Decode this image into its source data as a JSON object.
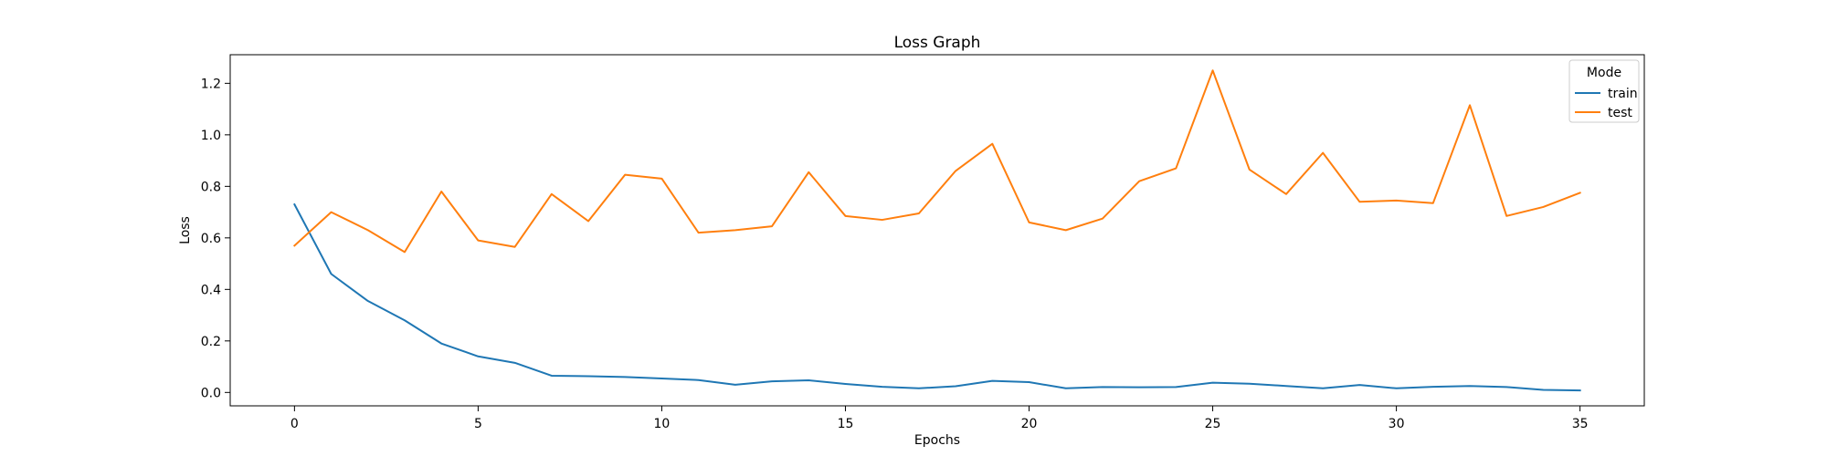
{
  "chart_data": {
    "type": "line",
    "title": "Loss Graph",
    "xlabel": "Epochs",
    "ylabel": "Loss",
    "x": [
      0,
      1,
      2,
      3,
      4,
      5,
      6,
      7,
      8,
      9,
      10,
      11,
      12,
      13,
      14,
      15,
      16,
      17,
      18,
      19,
      20,
      21,
      22,
      23,
      24,
      25,
      26,
      27,
      28,
      29,
      30,
      31,
      32,
      33,
      34,
      35
    ],
    "xlim": [
      -1.75,
      36.75
    ],
    "ylim": [
      -0.052,
      1.311
    ],
    "xticks": [
      0,
      5,
      10,
      15,
      20,
      25,
      30,
      35
    ],
    "yticks": [
      0.0,
      0.2,
      0.4,
      0.6,
      0.8,
      1.0,
      1.2
    ],
    "grid": false,
    "legend": {
      "title": "Mode",
      "placement": "top-right"
    },
    "series": [
      {
        "name": "train",
        "color": "#1f77b4",
        "values": [
          0.73,
          0.46,
          0.355,
          0.28,
          0.19,
          0.14,
          0.115,
          0.065,
          0.063,
          0.06,
          0.054,
          0.048,
          0.03,
          0.043,
          0.047,
          0.033,
          0.022,
          0.016,
          0.024,
          0.045,
          0.04,
          0.016,
          0.021,
          0.02,
          0.021,
          0.038,
          0.034,
          0.025,
          0.016,
          0.029,
          0.016,
          0.022,
          0.025,
          0.021,
          0.01,
          0.008
        ]
      },
      {
        "name": "test",
        "color": "#ff7f0e",
        "values": [
          0.57,
          0.7,
          0.63,
          0.545,
          0.78,
          0.59,
          0.565,
          0.77,
          0.665,
          0.845,
          0.83,
          0.62,
          0.63,
          0.645,
          0.855,
          0.685,
          0.67,
          0.695,
          0.86,
          0.965,
          0.66,
          0.63,
          0.675,
          0.82,
          0.87,
          1.25,
          0.865,
          0.77,
          0.93,
          0.74,
          0.745,
          0.735,
          1.115,
          0.685,
          0.72,
          0.775
        ]
      }
    ]
  }
}
